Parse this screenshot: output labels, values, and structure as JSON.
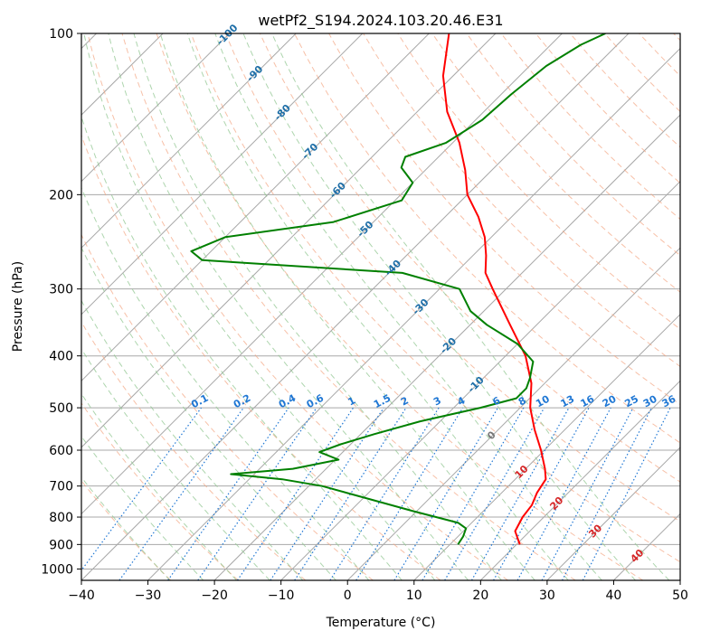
{
  "chart_data": {
    "type": "line",
    "title": "wetPf2_S194.2024.103.20.46.E31",
    "xlabel": "Temperature (°C)",
    "ylabel": "Pressure (hPa)",
    "xlim": [
      -40,
      50
    ],
    "ylim": [
      1050,
      100
    ],
    "yscale": "log",
    "x_ticks": [
      "−40",
      "−30",
      "−20",
      "−10",
      "0",
      "10",
      "20",
      "30",
      "40",
      "50"
    ],
    "y_ticks": [
      {
        "p": 100,
        "label": "100"
      },
      {
        "p": 200,
        "label": "200"
      },
      {
        "p": 300,
        "label": "300"
      },
      {
        "p": 400,
        "label": "400"
      },
      {
        "p": 500,
        "label": "500"
      },
      {
        "p": 600,
        "label": "600"
      },
      {
        "p": 700,
        "label": "700"
      },
      {
        "p": 800,
        "label": "800"
      },
      {
        "p": 900,
        "label": "900"
      },
      {
        "p": 1000,
        "label": "1000"
      }
    ],
    "grid": true,
    "skew": "45°",
    "colors": {
      "temperature": "#ff0000",
      "dewpoint": "#008000",
      "isotherm": "#a8a8a8",
      "dry_adiabat": "#f4a582",
      "moist_adiabat": "#92c792",
      "mixing_ratio": "#1f77d4",
      "isotherm_label": "#1f6fa8",
      "adiabat_label": "#d62728"
    },
    "series": [
      {
        "name": "",
        "color": "#ff0000",
        "points": [
          {
            "p": 900,
            "t": 20.5
          },
          {
            "p": 850,
            "t": 17.8
          },
          {
            "p": 800,
            "t": 16.8
          },
          {
            "p": 760,
            "t": 16.4
          },
          {
            "p": 720,
            "t": 15.3
          },
          {
            "p": 680,
            "t": 14.6
          },
          {
            "p": 650,
            "t": 12.9
          },
          {
            "p": 600,
            "t": 9.5
          },
          {
            "p": 550,
            "t": 5.5
          },
          {
            "p": 500,
            "t": 1.5
          },
          {
            "p": 450,
            "t": -2.0
          },
          {
            "p": 400,
            "t": -7.0
          },
          {
            "p": 350,
            "t": -14.0
          },
          {
            "p": 300,
            "t": -22.0
          },
          {
            "p": 280,
            "t": -25.5
          },
          {
            "p": 260,
            "t": -28.0
          },
          {
            "p": 240,
            "t": -31.0
          },
          {
            "p": 220,
            "t": -35.0
          },
          {
            "p": 200,
            "t": -40.0
          },
          {
            "p": 180,
            "t": -44.0
          },
          {
            "p": 160,
            "t": -49.0
          },
          {
            "p": 140,
            "t": -55.5
          },
          {
            "p": 120,
            "t": -61.5
          },
          {
            "p": 100,
            "t": -67.0
          }
        ]
      },
      {
        "name": "",
        "color": "#008000",
        "points": [
          {
            "p": 900,
            "t": 11.2
          },
          {
            "p": 870,
            "t": 10.8
          },
          {
            "p": 840,
            "t": 10.0
          },
          {
            "p": 820,
            "t": 8.0
          },
          {
            "p": 780,
            "t": -0.5
          },
          {
            "p": 740,
            "t": -9.0
          },
          {
            "p": 700,
            "t": -18.0
          },
          {
            "p": 680,
            "t": -25.0
          },
          {
            "p": 665,
            "t": -33.5
          },
          {
            "p": 650,
            "t": -25.0
          },
          {
            "p": 625,
            "t": -19.5
          },
          {
            "p": 605,
            "t": -23.5
          },
          {
            "p": 585,
            "t": -21.5
          },
          {
            "p": 560,
            "t": -18.0
          },
          {
            "p": 530,
            "t": -13.0
          },
          {
            "p": 500,
            "t": -6.0
          },
          {
            "p": 480,
            "t": -2.0
          },
          {
            "p": 460,
            "t": -2.0
          },
          {
            "p": 440,
            "t": -3.0
          },
          {
            "p": 410,
            "t": -5.0
          },
          {
            "p": 380,
            "t": -10.0
          },
          {
            "p": 350,
            "t": -17.5
          },
          {
            "p": 330,
            "t": -22.0
          },
          {
            "p": 300,
            "t": -27.0
          },
          {
            "p": 280,
            "t": -38.0
          },
          {
            "p": 265,
            "t": -70.0
          },
          {
            "p": 255,
            "t": -73.0
          },
          {
            "p": 240,
            "t": -70.0
          },
          {
            "p": 225,
            "t": -56.0
          },
          {
            "p": 205,
            "t": -49.0
          },
          {
            "p": 190,
            "t": -50.0
          },
          {
            "p": 178,
            "t": -54.0
          },
          {
            "p": 170,
            "t": -55.0
          },
          {
            "p": 160,
            "t": -51.0
          },
          {
            "p": 145,
            "t": -49.0
          },
          {
            "p": 130,
            "t": -48.5
          },
          {
            "p": 115,
            "t": -47.5
          },
          {
            "p": 105,
            "t": -45.5
          },
          {
            "p": 100,
            "t": -43.5
          }
        ]
      }
    ],
    "isotherm_labels": [
      {
        "t": -100,
        "label": "-100"
      },
      {
        "t": -90,
        "label": "-90"
      },
      {
        "t": -80,
        "label": "-80"
      },
      {
        "t": -70,
        "label": "-70"
      },
      {
        "t": -60,
        "label": "-60"
      },
      {
        "t": -50,
        "label": "-50"
      },
      {
        "t": -40,
        "label": "-40"
      },
      {
        "t": -30,
        "label": "-30"
      },
      {
        "t": -20,
        "label": "-20"
      },
      {
        "t": -10,
        "label": "-10"
      },
      {
        "t": 0,
        "label": "0"
      },
      {
        "t": 10,
        "label": "10"
      },
      {
        "t": 20,
        "label": "20"
      },
      {
        "t": 30,
        "label": "30"
      },
      {
        "t": 40,
        "label": "40"
      }
    ],
    "mixing_ratio_labels": [
      {
        "w": 0.1,
        "label": "0.1"
      },
      {
        "w": 0.2,
        "label": "0.2"
      },
      {
        "w": 0.4,
        "label": "0.4"
      },
      {
        "w": 0.6,
        "label": "0.6"
      },
      {
        "w": 1,
        "label": "1"
      },
      {
        "w": 1.5,
        "label": "1.5"
      },
      {
        "w": 2,
        "label": "2"
      },
      {
        "w": 3,
        "label": "3"
      },
      {
        "w": 4,
        "label": "4"
      },
      {
        "w": 6,
        "label": "6"
      },
      {
        "w": 8,
        "label": "8"
      },
      {
        "w": 10,
        "label": "10"
      },
      {
        "w": 13,
        "label": "13"
      },
      {
        "w": 16,
        "label": "16"
      },
      {
        "w": 20,
        "label": "20"
      },
      {
        "w": 25,
        "label": "25"
      },
      {
        "w": 30,
        "label": "30"
      },
      {
        "w": 36,
        "label": "36"
      }
    ]
  }
}
